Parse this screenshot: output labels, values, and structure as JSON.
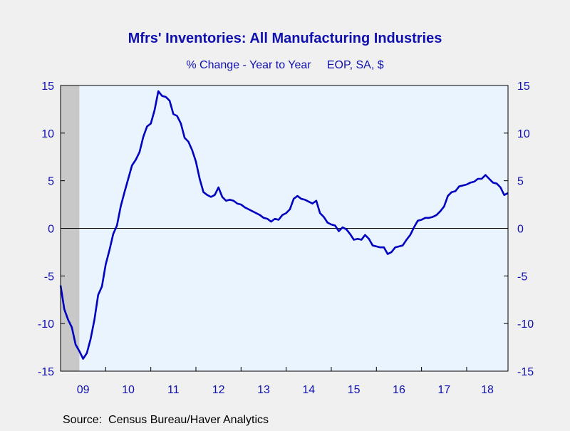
{
  "chart_data": {
    "type": "line",
    "title": "Mfrs' Inventories: All Manufacturing Industries",
    "subtitle": "% Change - Year to Year     EOP, SA, $",
    "source": "Source:  Census Bureau/Haver Analytics",
    "x_tick_labels": [
      "09",
      "10",
      "11",
      "12",
      "13",
      "14",
      "15",
      "16",
      "17",
      "18"
    ],
    "y_ticks": [
      -15,
      -10,
      -5,
      0,
      5,
      10,
      15
    ],
    "ylim": [
      -15,
      15
    ],
    "xlim": [
      2009.0,
      2018.9167
    ],
    "grid": false,
    "recession_shading": {
      "start": 2009.0,
      "end": 2009.4167
    },
    "colors": {
      "line": "#0000c0",
      "text": "#1010b0",
      "plot_bg": "#eaf4ff",
      "recession": "#c8c8c8"
    },
    "series": [
      {
        "values": [
          [
            2009.0,
            -6.0
          ],
          [
            2009.083,
            -8.5
          ],
          [
            2009.167,
            -9.6
          ],
          [
            2009.25,
            -10.4
          ],
          [
            2009.333,
            -12.2
          ],
          [
            2009.417,
            -12.9
          ],
          [
            2009.5,
            -13.7
          ],
          [
            2009.583,
            -13.1
          ],
          [
            2009.667,
            -11.6
          ],
          [
            2009.75,
            -9.6
          ],
          [
            2009.833,
            -7.0
          ],
          [
            2009.917,
            -6.1
          ],
          [
            2010.0,
            -3.8
          ],
          [
            2010.083,
            -2.3
          ],
          [
            2010.167,
            -0.6
          ],
          [
            2010.25,
            0.3
          ],
          [
            2010.333,
            2.3
          ],
          [
            2010.417,
            3.8
          ],
          [
            2010.5,
            5.2
          ],
          [
            2010.583,
            6.6
          ],
          [
            2010.667,
            7.2
          ],
          [
            2010.75,
            8.0
          ],
          [
            2010.833,
            9.6
          ],
          [
            2010.917,
            10.7
          ],
          [
            2011.0,
            11.0
          ],
          [
            2011.083,
            12.4
          ],
          [
            2011.167,
            14.4
          ],
          [
            2011.25,
            13.9
          ],
          [
            2011.333,
            13.8
          ],
          [
            2011.417,
            13.4
          ],
          [
            2011.5,
            12.0
          ],
          [
            2011.583,
            11.8
          ],
          [
            2011.667,
            11.0
          ],
          [
            2011.75,
            9.5
          ],
          [
            2011.833,
            9.1
          ],
          [
            2011.917,
            8.2
          ],
          [
            2012.0,
            7.0
          ],
          [
            2012.083,
            5.2
          ],
          [
            2012.167,
            3.8
          ],
          [
            2012.25,
            3.5
          ],
          [
            2012.333,
            3.3
          ],
          [
            2012.417,
            3.5
          ],
          [
            2012.5,
            4.3
          ],
          [
            2012.583,
            3.3
          ],
          [
            2012.667,
            2.9
          ],
          [
            2012.75,
            3.0
          ],
          [
            2012.833,
            2.9
          ],
          [
            2012.917,
            2.6
          ],
          [
            2013.0,
            2.5
          ],
          [
            2013.083,
            2.2
          ],
          [
            2013.167,
            2.0
          ],
          [
            2013.25,
            1.8
          ],
          [
            2013.333,
            1.6
          ],
          [
            2013.417,
            1.4
          ],
          [
            2013.5,
            1.1
          ],
          [
            2013.583,
            1.0
          ],
          [
            2013.667,
            0.7
          ],
          [
            2013.75,
            1.0
          ],
          [
            2013.833,
            0.9
          ],
          [
            2013.917,
            1.4
          ],
          [
            2014.0,
            1.6
          ],
          [
            2014.083,
            2.0
          ],
          [
            2014.167,
            3.1
          ],
          [
            2014.25,
            3.4
          ],
          [
            2014.333,
            3.1
          ],
          [
            2014.417,
            3.0
          ],
          [
            2014.5,
            2.8
          ],
          [
            2014.583,
            2.6
          ],
          [
            2014.667,
            2.9
          ],
          [
            2014.75,
            1.6
          ],
          [
            2014.833,
            1.2
          ],
          [
            2014.917,
            0.6
          ],
          [
            2015.0,
            0.4
          ],
          [
            2015.083,
            0.3
          ],
          [
            2015.167,
            -0.3
          ],
          [
            2015.25,
            0.1
          ],
          [
            2015.333,
            -0.1
          ],
          [
            2015.417,
            -0.6
          ],
          [
            2015.5,
            -1.2
          ],
          [
            2015.583,
            -1.1
          ],
          [
            2015.667,
            -1.2
          ],
          [
            2015.75,
            -0.7
          ],
          [
            2015.833,
            -1.1
          ],
          [
            2015.917,
            -1.8
          ],
          [
            2016.0,
            -1.9
          ],
          [
            2016.083,
            -2.0
          ],
          [
            2016.167,
            -2.0
          ],
          [
            2016.25,
            -2.7
          ],
          [
            2016.333,
            -2.5
          ],
          [
            2016.417,
            -2.0
          ],
          [
            2016.5,
            -1.9
          ],
          [
            2016.583,
            -1.8
          ],
          [
            2016.667,
            -1.2
          ],
          [
            2016.75,
            -0.7
          ],
          [
            2016.833,
            0.1
          ],
          [
            2016.917,
            0.8
          ],
          [
            2017.0,
            0.9
          ],
          [
            2017.083,
            1.1
          ],
          [
            2017.167,
            1.1
          ],
          [
            2017.25,
            1.2
          ],
          [
            2017.333,
            1.4
          ],
          [
            2017.417,
            1.8
          ],
          [
            2017.5,
            2.3
          ],
          [
            2017.583,
            3.4
          ],
          [
            2017.667,
            3.8
          ],
          [
            2017.75,
            3.9
          ],
          [
            2017.833,
            4.4
          ],
          [
            2017.917,
            4.5
          ],
          [
            2018.0,
            4.6
          ],
          [
            2018.083,
            4.8
          ],
          [
            2018.167,
            4.9
          ],
          [
            2018.25,
            5.2
          ],
          [
            2018.333,
            5.2
          ],
          [
            2018.417,
            5.6
          ],
          [
            2018.5,
            5.2
          ],
          [
            2018.583,
            4.8
          ],
          [
            2018.667,
            4.7
          ],
          [
            2018.75,
            4.3
          ],
          [
            2018.833,
            3.5
          ],
          [
            2018.917,
            3.7
          ]
        ]
      }
    ]
  }
}
